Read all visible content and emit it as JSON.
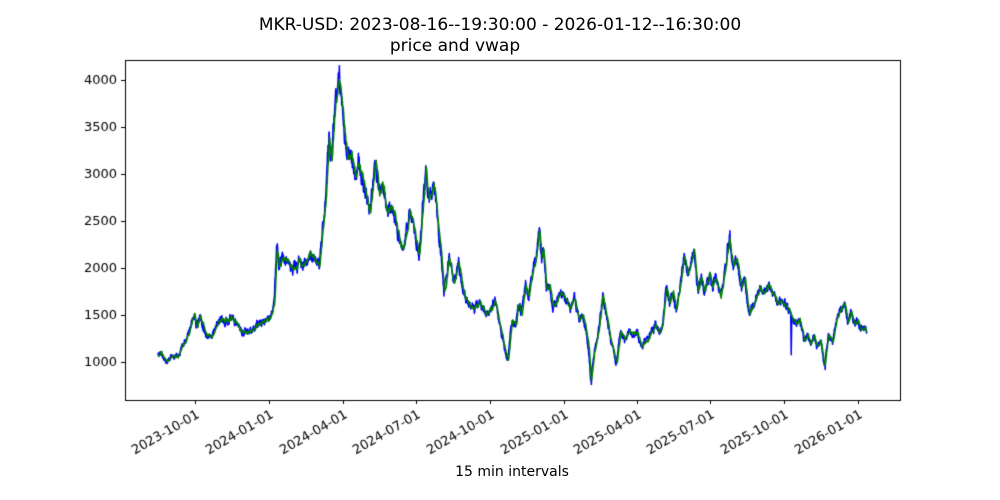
{
  "figure": {
    "background": "#ffffff"
  },
  "chart_data": {
    "type": "line",
    "title": "MKR-USD: 2023-08-16--19:30:00 - 2026-01-12--16:30:00",
    "subtitle": "price and vwap",
    "xlabel": "15 min intervals",
    "start": "2023-08-16",
    "end": "2026-01-12",
    "grid": false,
    "legend_position": "none",
    "x_tick_labels": [
      "2023-10-01",
      "2024-01-01",
      "2024-04-01",
      "2024-07-01",
      "2024-10-01",
      "2025-01-01",
      "2025-04-01",
      "2025-07-01",
      "2025-10-01",
      "2026-01-01"
    ],
    "y_ticks": [
      1000,
      1500,
      2000,
      2500,
      3000,
      3500,
      4000
    ],
    "ylim": [
      600,
      4215
    ],
    "xlim_dates": [
      "2023-07-06",
      "2026-02-22"
    ],
    "axis_color": "#000000",
    "series": [
      {
        "name": "price",
        "color": "#0000ff"
      },
      {
        "name": "vwap",
        "color": "#008000"
      }
    ],
    "vwap_anchors": [
      [
        "2023-08-16",
        1060
      ],
      [
        "2023-08-20",
        1120
      ],
      [
        "2023-08-24",
        1040
      ],
      [
        "2023-08-28",
        980
      ],
      [
        "2023-09-03",
        1070
      ],
      [
        "2023-09-08",
        1050
      ],
      [
        "2023-09-14",
        1120
      ],
      [
        "2023-09-20",
        1210
      ],
      [
        "2023-09-26",
        1390
      ],
      [
        "2023-10-01",
        1530
      ],
      [
        "2023-10-04",
        1400
      ],
      [
        "2023-10-08",
        1520
      ],
      [
        "2023-10-12",
        1400
      ],
      [
        "2023-10-16",
        1300
      ],
      [
        "2023-10-22",
        1280
      ],
      [
        "2023-10-28",
        1390
      ],
      [
        "2023-11-04",
        1450
      ],
      [
        "2023-11-10",
        1420
      ],
      [
        "2023-11-16",
        1470
      ],
      [
        "2023-11-22",
        1400
      ],
      [
        "2023-11-28",
        1330
      ],
      [
        "2023-12-04",
        1310
      ],
      [
        "2023-12-10",
        1345
      ],
      [
        "2023-12-16",
        1395
      ],
      [
        "2023-12-22",
        1430
      ],
      [
        "2023-12-29",
        1460
      ],
      [
        "2024-01-04",
        1510
      ],
      [
        "2024-01-08",
        1630
      ],
      [
        "2024-01-11",
        2200
      ],
      [
        "2024-01-14",
        2020
      ],
      [
        "2024-01-19",
        2110
      ],
      [
        "2024-01-25",
        2040
      ],
      [
        "2024-02-01",
        1980
      ],
      [
        "2024-02-08",
        2070
      ],
      [
        "2024-02-14",
        2000
      ],
      [
        "2024-02-21",
        2150
      ],
      [
        "2024-02-27",
        2100
      ],
      [
        "2024-03-04",
        1990
      ],
      [
        "2024-03-08",
        2420
      ],
      [
        "2024-03-12",
        2740
      ],
      [
        "2024-03-16",
        3430
      ],
      [
        "2024-03-19",
        3170
      ],
      [
        "2024-03-23",
        3650
      ],
      [
        "2024-03-28",
        4050
      ],
      [
        "2024-04-01",
        3810
      ],
      [
        "2024-04-04",
        3470
      ],
      [
        "2024-04-08",
        3190
      ],
      [
        "2024-04-13",
        3290
      ],
      [
        "2024-04-18",
        2960
      ],
      [
        "2024-04-23",
        3060
      ],
      [
        "2024-04-29",
        2850
      ],
      [
        "2024-05-06",
        2580
      ],
      [
        "2024-05-13",
        3160
      ],
      [
        "2024-05-17",
        2800
      ],
      [
        "2024-05-21",
        2910
      ],
      [
        "2024-05-27",
        2650
      ],
      [
        "2024-06-01",
        2720
      ],
      [
        "2024-06-06",
        2620
      ],
      [
        "2024-06-12",
        2300
      ],
      [
        "2024-06-18",
        2270
      ],
      [
        "2024-06-24",
        2650
      ],
      [
        "2024-06-30",
        2400
      ],
      [
        "2024-07-06",
        2090
      ],
      [
        "2024-07-14",
        3080
      ],
      [
        "2024-07-18",
        2760
      ],
      [
        "2024-07-24",
        2900
      ],
      [
        "2024-08-02",
        2190
      ],
      [
        "2024-08-06",
        1730
      ],
      [
        "2024-08-12",
        2090
      ],
      [
        "2024-08-18",
        1840
      ],
      [
        "2024-08-24",
        2020
      ],
      [
        "2024-08-30",
        1740
      ],
      [
        "2024-09-07",
        1590
      ],
      [
        "2024-09-14",
        1560
      ],
      [
        "2024-09-20",
        1630
      ],
      [
        "2024-09-27",
        1490
      ],
      [
        "2024-10-03",
        1520
      ],
      [
        "2024-10-08",
        1650
      ],
      [
        "2024-10-13",
        1440
      ],
      [
        "2024-10-18",
        1250
      ],
      [
        "2024-10-24",
        1030
      ],
      [
        "2024-10-29",
        1470
      ],
      [
        "2024-11-03",
        1380
      ],
      [
        "2024-11-06",
        1610
      ],
      [
        "2024-11-10",
        1490
      ],
      [
        "2024-11-15",
        1870
      ],
      [
        "2024-11-19",
        1770
      ],
      [
        "2024-11-24",
        1980
      ],
      [
        "2024-11-28",
        2100
      ],
      [
        "2024-12-02",
        2370
      ],
      [
        "2024-12-05",
        2090
      ],
      [
        "2024-12-07",
        2180
      ],
      [
        "2024-12-11",
        1760
      ],
      [
        "2024-12-15",
        1840
      ],
      [
        "2024-12-19",
        1610
      ],
      [
        "2024-12-24",
        1650
      ],
      [
        "2024-12-29",
        1700
      ],
      [
        "2025-01-04",
        1630
      ],
      [
        "2025-01-10",
        1590
      ],
      [
        "2025-01-15",
        1650
      ],
      [
        "2025-01-21",
        1450
      ],
      [
        "2025-01-25",
        1510
      ],
      [
        "2025-01-29",
        1340
      ],
      [
        "2025-02-01",
        1180
      ],
      [
        "2025-02-04",
        795
      ],
      [
        "2025-02-08",
        1090
      ],
      [
        "2025-02-13",
        1280
      ],
      [
        "2025-02-19",
        1740
      ],
      [
        "2025-02-24",
        1490
      ],
      [
        "2025-03-01",
        1240
      ],
      [
        "2025-03-08",
        990
      ],
      [
        "2025-03-13",
        1330
      ],
      [
        "2025-03-18",
        1240
      ],
      [
        "2025-03-24",
        1350
      ],
      [
        "2025-03-30",
        1300
      ],
      [
        "2025-04-03",
        1340
      ],
      [
        "2025-04-08",
        1150
      ],
      [
        "2025-04-14",
        1260
      ],
      [
        "2025-04-19",
        1310
      ],
      [
        "2025-04-25",
        1400
      ],
      [
        "2025-04-30",
        1340
      ],
      [
        "2025-05-04",
        1420
      ],
      [
        "2025-05-09",
        1800
      ],
      [
        "2025-05-13",
        1610
      ],
      [
        "2025-05-17",
        1730
      ],
      [
        "2025-05-21",
        1530
      ],
      [
        "2025-05-27",
        1860
      ],
      [
        "2025-05-31",
        2120
      ],
      [
        "2025-06-04",
        1980
      ],
      [
        "2025-06-08",
        2100
      ],
      [
        "2025-06-12",
        2250
      ],
      [
        "2025-06-17",
        1810
      ],
      [
        "2025-06-21",
        1950
      ],
      [
        "2025-06-25",
        1780
      ],
      [
        "2025-07-01",
        1980
      ],
      [
        "2025-07-05",
        1800
      ],
      [
        "2025-07-09",
        1880
      ],
      [
        "2025-07-15",
        1720
      ],
      [
        "2025-07-19",
        1910
      ],
      [
        "2025-07-26",
        2320
      ],
      [
        "2025-07-31",
        2020
      ],
      [
        "2025-08-04",
        2090
      ],
      [
        "2025-08-10",
        1750
      ],
      [
        "2025-08-14",
        1880
      ],
      [
        "2025-08-20",
        1520
      ],
      [
        "2025-08-26",
        1630
      ],
      [
        "2025-09-02",
        1770
      ],
      [
        "2025-09-07",
        1730
      ],
      [
        "2025-09-12",
        1800
      ],
      [
        "2025-09-18",
        1700
      ],
      [
        "2025-09-24",
        1610
      ],
      [
        "2025-09-28",
        1660
      ],
      [
        "2025-10-03",
        1620
      ],
      [
        "2025-10-08",
        1560
      ],
      [
        "2025-10-13",
        1490
      ],
      [
        "2025-10-17",
        1420
      ],
      [
        "2025-10-21",
        1480
      ],
      [
        "2025-10-27",
        1240
      ],
      [
        "2025-10-31",
        1330
      ],
      [
        "2025-11-04",
        1200
      ],
      [
        "2025-11-08",
        1280
      ],
      [
        "2025-11-12",
        1150
      ],
      [
        "2025-11-16",
        1220
      ],
      [
        "2025-11-21",
        960
      ],
      [
        "2025-11-26",
        1300
      ],
      [
        "2025-12-01",
        1210
      ],
      [
        "2025-12-06",
        1450
      ],
      [
        "2025-12-11",
        1560
      ],
      [
        "2025-12-16",
        1640
      ],
      [
        "2025-12-20",
        1420
      ],
      [
        "2025-12-24",
        1520
      ],
      [
        "2025-12-28",
        1380
      ],
      [
        "2026-01-01",
        1450
      ],
      [
        "2026-01-05",
        1330
      ],
      [
        "2026-01-09",
        1360
      ],
      [
        "2026-01-12",
        1310
      ]
    ],
    "price_events": [
      [
        "2024-01-11",
        2260
      ],
      [
        "2024-03-28",
        4155
      ],
      [
        "2024-12-02",
        2410
      ],
      [
        "2025-02-04",
        765
      ],
      [
        "2025-07-26",
        2400
      ],
      [
        "2025-10-10",
        1080
      ],
      [
        "2025-11-21",
        925
      ]
    ],
    "noise": {
      "seed": 11,
      "slow_step": 0.016,
      "slow_revert": 0.06,
      "fast_step": 0.045,
      "fast_phi": 0.5,
      "jitter": 0.012,
      "lead_days": 0.9,
      "lead_gain": 1.1
    }
  }
}
